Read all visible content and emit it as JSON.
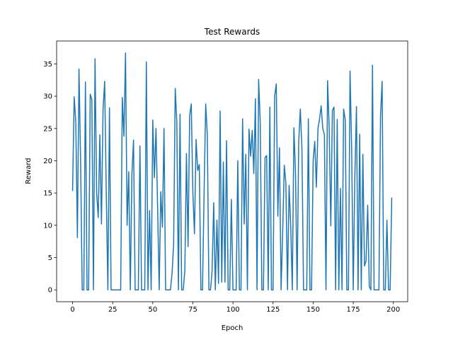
{
  "chart_data": {
    "type": "line",
    "title": "Test Rewards",
    "x_label": "Epoch",
    "y_label": "Reward",
    "x": [
      0,
      1,
      2,
      3,
      4,
      5,
      6,
      7,
      8,
      9,
      10,
      11,
      12,
      13,
      14,
      15,
      16,
      17,
      18,
      19,
      20,
      21,
      22,
      23,
      24,
      25,
      26,
      27,
      28,
      29,
      30,
      31,
      32,
      33,
      34,
      35,
      36,
      37,
      38,
      39,
      40,
      41,
      42,
      43,
      44,
      45,
      46,
      47,
      48,
      49,
      50,
      51,
      52,
      53,
      54,
      55,
      56,
      57,
      58,
      59,
      60,
      61,
      62,
      63,
      64,
      65,
      66,
      67,
      68,
      69,
      70,
      71,
      72,
      73,
      74,
      75,
      76,
      77,
      78,
      79,
      80,
      81,
      82,
      83,
      84,
      85,
      86,
      87,
      88,
      89,
      90,
      91,
      92,
      93,
      94,
      95,
      96,
      97,
      98,
      99,
      100,
      101,
      102,
      103,
      104,
      105,
      106,
      107,
      108,
      109,
      110,
      111,
      112,
      113,
      114,
      115,
      116,
      117,
      118,
      119,
      120,
      121,
      122,
      123,
      124,
      125,
      126,
      127,
      128,
      129,
      130,
      131,
      132,
      133,
      134,
      135,
      136,
      137,
      138,
      139,
      140,
      141,
      142,
      143,
      144,
      145,
      146,
      147,
      148,
      149,
      150,
      151,
      152,
      153,
      154,
      155,
      156,
      157,
      158,
      159,
      160,
      161,
      162,
      163,
      164,
      165,
      166,
      167,
      168,
      169,
      170,
      171,
      172,
      173,
      174,
      175,
      176,
      177,
      178,
      179,
      180,
      181,
      182,
      183,
      184,
      185,
      186,
      187,
      188,
      189,
      190,
      191,
      192,
      193,
      194,
      195,
      196,
      197,
      198,
      199
    ],
    "series": [
      {
        "color": "#1f77b4",
        "values": [
          15.3,
          29.9,
          26,
          8.1,
          34.2,
          20,
          0,
          0,
          32.2,
          0,
          0,
          30.3,
          29.5,
          0,
          35.8,
          15,
          11.2,
          24,
          10.2,
          28,
          32.3,
          15,
          0,
          28.2,
          0,
          0,
          0,
          0,
          0,
          0,
          0,
          29.8,
          23.8,
          36.7,
          10,
          18.3,
          0,
          18,
          23.2,
          0,
          0,
          0,
          22.3,
          0,
          0,
          0,
          35.3,
          0,
          12.3,
          0,
          26.3,
          17.4,
          25,
          13,
          0,
          15.2,
          9.7,
          25,
          0,
          0,
          0,
          0,
          2.5,
          7,
          31.2,
          26,
          0,
          27.2,
          0,
          0,
          3,
          21.1,
          6.7,
          27,
          28.8,
          15,
          8.7,
          23.3,
          18.5,
          19.4,
          0,
          0,
          15,
          28.8,
          24,
          0,
          0,
          3,
          13.5,
          0,
          10.8,
          1,
          27.7,
          1.2,
          19.8,
          1.2,
          23.1,
          0,
          0,
          14,
          0,
          0,
          0,
          20,
          0,
          0,
          26.5,
          10.2,
          21,
          0,
          24.9,
          20.7,
          24.7,
          18,
          29.6,
          0,
          32.6,
          26,
          0,
          0,
          20.5,
          20.8,
          0,
          28.3,
          0,
          0,
          30,
          31.9,
          11.4,
          22,
          0,
          9,
          19.3,
          16.5,
          0,
          16.2,
          10,
          0,
          25.1,
          18,
          0,
          23,
          28,
          21.9,
          0,
          0,
          0,
          26.5,
          0,
          0,
          20,
          23,
          15.9,
          25,
          26.5,
          28.5,
          25,
          24,
          0,
          32.4,
          25,
          9.9,
          27.8,
          28.3,
          0,
          26.4,
          0,
          15.7,
          0,
          28,
          26.3,
          0,
          0,
          33.9,
          22,
          0,
          17.6,
          28.4,
          0,
          24.1,
          0,
          21,
          3.7,
          4.5,
          13.1,
          0.5,
          0,
          34.8,
          0,
          0,
          0,
          0,
          27,
          32.3,
          0,
          0,
          10.8,
          0,
          0,
          14.3
        ]
      }
    ],
    "xlim": [
      -9.95,
      208.95
    ],
    "ylim": [
      -1.84,
      38.55
    ],
    "xticks": [
      0,
      25,
      50,
      75,
      100,
      125,
      150,
      175,
      200
    ],
    "yticks": [
      0,
      5,
      10,
      15,
      20,
      25,
      30,
      35
    ]
  }
}
